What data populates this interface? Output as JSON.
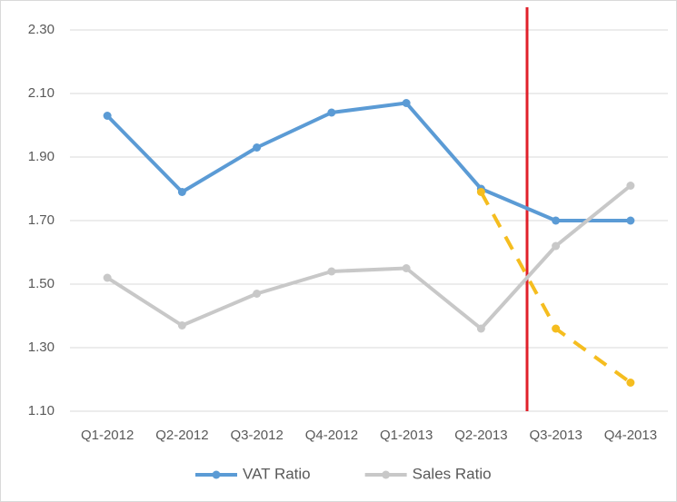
{
  "chart_data": {
    "type": "line",
    "categories": [
      "Q1-2012",
      "Q2-2012",
      "Q3-2012",
      "Q4-2012",
      "Q1-2013",
      "Q2-2013",
      "Q3-2013",
      "Q4-2013"
    ],
    "series": [
      {
        "name": "VAT Ratio",
        "color": "#5b9bd5",
        "values": [
          2.03,
          1.79,
          1.93,
          2.04,
          2.07,
          1.8,
          1.7,
          1.7
        ]
      },
      {
        "name": "Sales Ratio",
        "color": "#c8c8c8",
        "values": [
          1.52,
          1.37,
          1.47,
          1.54,
          1.55,
          1.36,
          1.62,
          1.81
        ]
      },
      {
        "color": "#f5bd1f",
        "dashed": true,
        "values": [
          null,
          null,
          null,
          null,
          null,
          1.79,
          1.36,
          1.19
        ]
      }
    ],
    "ylim": [
      1.1,
      2.3
    ],
    "yticks": [
      {
        "value": 1.1,
        "label": "1.10"
      },
      {
        "value": 1.3,
        "label": "1.30"
      },
      {
        "value": 1.5,
        "label": "1.50"
      },
      {
        "value": 1.7,
        "label": "1.70"
      },
      {
        "value": 1.9,
        "label": "1.90"
      },
      {
        "value": 2.1,
        "label": "2.10"
      },
      {
        "value": 2.3,
        "label": "2.30"
      }
    ],
    "grid": true,
    "legend": "bottom"
  }
}
